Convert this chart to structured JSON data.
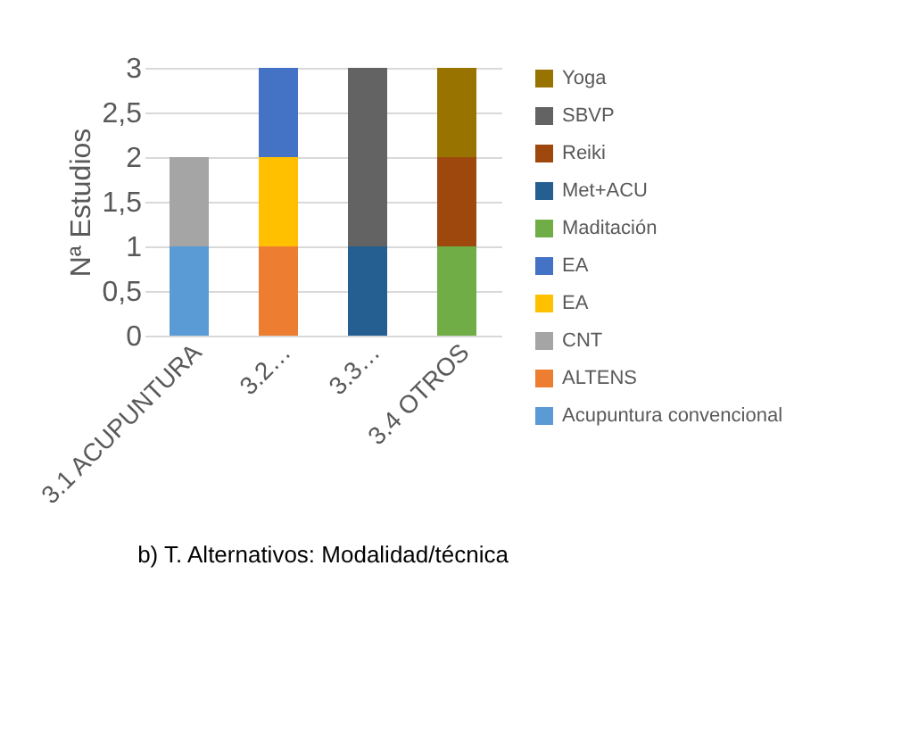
{
  "chart_data": {
    "type": "bar",
    "stacked": true,
    "title": "b) T. Alternativos: Modalidad/técnica",
    "ylabel": "Nª Estudios",
    "categories": [
      "3.1 ACUPUNTURA",
      "3.2…",
      "3.3…",
      "3.4 OTROS"
    ],
    "ylim": [
      0,
      3
    ],
    "yticks": [
      0,
      {
        "value": 0.5,
        "label": "0,5"
      },
      1,
      {
        "value": 1.5,
        "label": "1,5"
      },
      2,
      {
        "value": 2.5,
        "label": "2,5"
      },
      3
    ],
    "grid": "y",
    "legend": "right",
    "series": [
      {
        "name": "Acupuntura convencional",
        "color": "#5b9bd5",
        "values": [
          1,
          null,
          null,
          null
        ]
      },
      {
        "name": "ALTENS",
        "color": "#ed7d31",
        "values": [
          null,
          1,
          null,
          null
        ]
      },
      {
        "name": "CNT",
        "color": "#a5a5a5",
        "values": [
          1,
          null,
          null,
          null
        ]
      },
      {
        "name": "EA",
        "color": "#ffc000",
        "values": [
          null,
          1,
          null,
          null
        ]
      },
      {
        "name": "EA",
        "color": "#4472c4",
        "values": [
          null,
          1,
          null,
          null
        ]
      },
      {
        "name": "Maditación",
        "color": "#70ad47",
        "values": [
          null,
          null,
          null,
          1
        ]
      },
      {
        "name": "Met+ACU",
        "color": "#255e91",
        "values": [
          null,
          null,
          1,
          null
        ]
      },
      {
        "name": "Reiki",
        "color": "#9e480e",
        "values": [
          null,
          null,
          null,
          1
        ]
      },
      {
        "name": "SBVP",
        "color": "#636363",
        "values": [
          null,
          null,
          2,
          null
        ]
      },
      {
        "name": "Yoga",
        "color": "#997300",
        "values": [
          null,
          null,
          null,
          1
        ]
      }
    ]
  }
}
